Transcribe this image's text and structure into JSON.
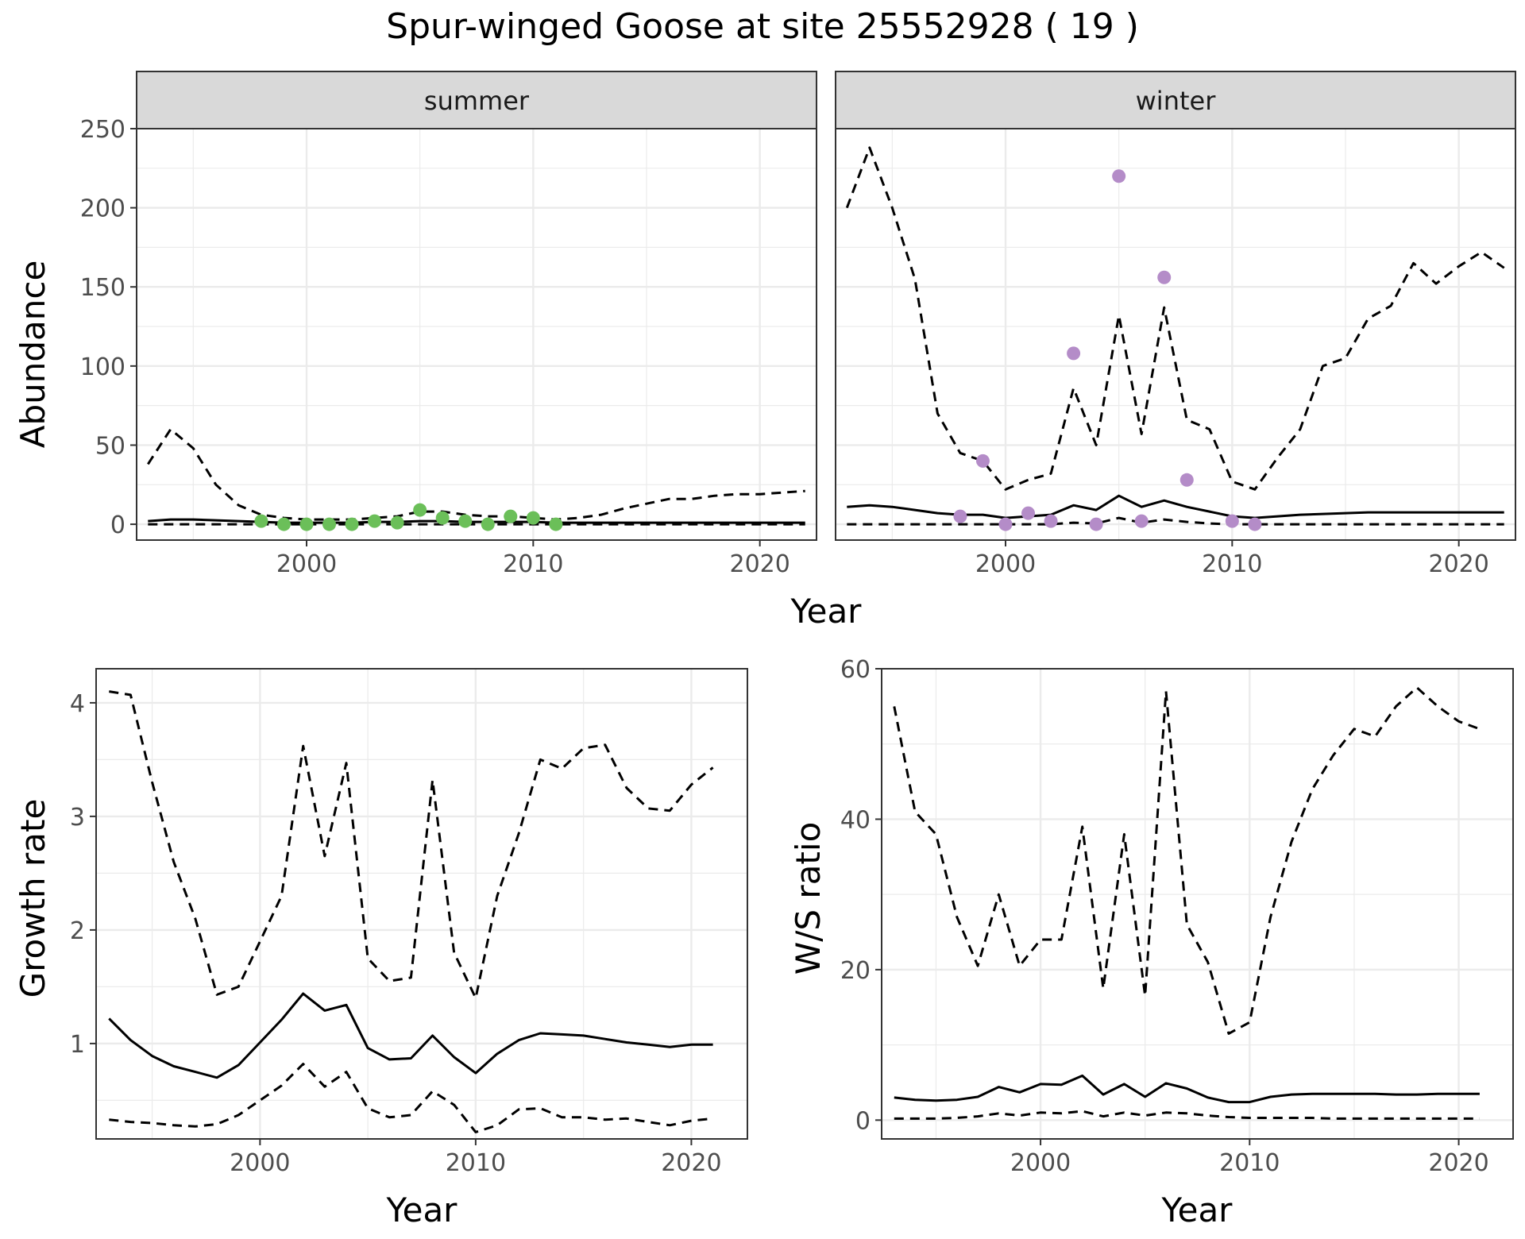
{
  "title": "Spur-winged Goose at site 25552928 ( 19 )",
  "chart_data": [
    {
      "type": "line",
      "panel": "abundance",
      "facets": [
        "summer",
        "winter"
      ],
      "xlabel": "Year",
      "ylabel": "Abundance",
      "xlim": [
        1992.5,
        2022.5
      ],
      "ylim": [
        -10,
        250
      ],
      "x_ticks": [
        2000,
        2010,
        2020
      ],
      "y_ticks": [
        0,
        50,
        100,
        150,
        200,
        250
      ],
      "grid": true,
      "legend": "none",
      "point_colors": {
        "summer": "#6BBF59",
        "winter": "#B48CC8"
      },
      "series": [
        {
          "facet": "summer",
          "kind": "mean",
          "style": "solid",
          "x": [
            1993,
            1994,
            1995,
            1996,
            1997,
            1998,
            1999,
            2000,
            2001,
            2002,
            2003,
            2004,
            2005,
            2006,
            2007,
            2008,
            2009,
            2010,
            2011,
            2012,
            2013,
            2014,
            2015,
            2016,
            2017,
            2018,
            2019,
            2020,
            2021,
            2022
          ],
          "y": [
            2,
            3,
            3,
            2.5,
            2,
            1.5,
            1,
            1,
            1,
            1,
            1.5,
            1.5,
            2,
            2,
            1.5,
            1.5,
            1.5,
            1.5,
            1,
            1,
            1,
            1,
            1,
            1,
            1,
            1,
            1,
            1,
            1,
            1
          ]
        },
        {
          "facet": "summer",
          "kind": "lower",
          "style": "dashed",
          "x": [
            1993,
            1994,
            1995,
            1996,
            1997,
            1998,
            1999,
            2000,
            2001,
            2002,
            2003,
            2004,
            2005,
            2006,
            2007,
            2008,
            2009,
            2010,
            2011,
            2012,
            2013,
            2014,
            2015,
            2016,
            2017,
            2018,
            2019,
            2020,
            2021,
            2022
          ],
          "y": [
            0,
            0,
            0,
            0,
            0,
            0,
            0,
            0,
            0,
            0,
            0,
            0,
            0,
            0,
            0,
            0,
            0,
            0,
            0,
            0,
            0,
            0,
            0,
            0,
            0,
            0,
            0,
            0,
            0,
            0
          ]
        },
        {
          "facet": "summer",
          "kind": "upper",
          "style": "dashed",
          "x": [
            1993,
            1994,
            1995,
            1996,
            1997,
            1998,
            1999,
            2000,
            2001,
            2002,
            2003,
            2004,
            2005,
            2006,
            2007,
            2008,
            2009,
            2010,
            2011,
            2012,
            2013,
            2014,
            2015,
            2016,
            2017,
            2018,
            2019,
            2020,
            2021,
            2022
          ],
          "y": [
            38,
            60,
            48,
            25,
            12,
            6,
            4,
            3,
            3,
            3,
            4,
            5,
            8,
            8,
            6,
            5,
            5,
            4,
            3,
            4,
            6,
            10,
            13,
            16,
            16,
            18,
            19,
            19,
            20,
            21
          ]
        },
        {
          "facet": "winter",
          "kind": "mean",
          "style": "solid",
          "x": [
            1993,
            1994,
            1995,
            1996,
            1997,
            1998,
            1999,
            2000,
            2001,
            2002,
            2003,
            2004,
            2005,
            2006,
            2007,
            2008,
            2009,
            2010,
            2011,
            2012,
            2013,
            2014,
            2015,
            2016,
            2017,
            2018,
            2019,
            2020,
            2021,
            2022
          ],
          "y": [
            11,
            12,
            11,
            9,
            7,
            6,
            6,
            4,
            5,
            6,
            12,
            9,
            18,
            11,
            15,
            11,
            8,
            5,
            4,
            5,
            6,
            6.5,
            7,
            7.5,
            7.5,
            7.5,
            7.5,
            7.5,
            7.5,
            7.5
          ]
        },
        {
          "facet": "winter",
          "kind": "lower",
          "style": "dashed",
          "x": [
            1993,
            1994,
            1995,
            1996,
            1997,
            1998,
            1999,
            2000,
            2001,
            2002,
            2003,
            2004,
            2005,
            2006,
            2007,
            2008,
            2009,
            2010,
            2011,
            2012,
            2013,
            2014,
            2015,
            2016,
            2017,
            2018,
            2019,
            2020,
            2021,
            2022
          ],
          "y": [
            0,
            0,
            0,
            0,
            0,
            0,
            0,
            0,
            0,
            0,
            1,
            0.5,
            4,
            1,
            3,
            1.5,
            0.5,
            0,
            0,
            0,
            0,
            0,
            0,
            0,
            0,
            0,
            0,
            0,
            0,
            0
          ]
        },
        {
          "facet": "winter",
          "kind": "upper",
          "style": "dashed",
          "x": [
            1993,
            1994,
            1995,
            1996,
            1997,
            1998,
            1999,
            2000,
            2001,
            2002,
            2003,
            2004,
            2005,
            2006,
            2007,
            2008,
            2009,
            2010,
            2011,
            2012,
            2013,
            2014,
            2015,
            2016,
            2017,
            2018,
            2019,
            2020,
            2021,
            2022
          ],
          "y": [
            200,
            238,
            200,
            155,
            70,
            45,
            40,
            22,
            28,
            32,
            86,
            50,
            132,
            57,
            137,
            66,
            60,
            27,
            22,
            42,
            60,
            100,
            105,
            130,
            138,
            165,
            152,
            163,
            172,
            162
          ]
        }
      ],
      "points": [
        {
          "facet": "summer",
          "x": [
            1998,
            1999,
            2000,
            2001,
            2002,
            2003,
            2004,
            2005,
            2006,
            2007,
            2008,
            2009,
            2010,
            2011
          ],
          "y": [
            2,
            0,
            0,
            0,
            0,
            2,
            1,
            9,
            4,
            2,
            0,
            5,
            4,
            0
          ]
        },
        {
          "facet": "winter",
          "x": [
            1998,
            1999,
            2000,
            2001,
            2002,
            2003,
            2004,
            2005,
            2006,
            2007,
            2008,
            2010,
            2011
          ],
          "y": [
            5,
            40,
            0,
            7,
            2,
            108,
            0,
            220,
            2,
            156,
            28,
            2,
            0
          ]
        }
      ]
    },
    {
      "type": "line",
      "panel": "growth",
      "xlabel": "Year",
      "ylabel": "Growth rate",
      "xlim": [
        1992.4,
        2022.6
      ],
      "ylim": [
        0.16,
        4.3
      ],
      "x_ticks": [
        2000,
        2010,
        2020
      ],
      "y_ticks": [
        1,
        2,
        3,
        4
      ],
      "grid": true,
      "legend": "none",
      "series": [
        {
          "kind": "mean",
          "style": "solid",
          "x": [
            1993,
            1994,
            1995,
            1996,
            1997,
            1998,
            1999,
            2000,
            2001,
            2002,
            2003,
            2004,
            2005,
            2006,
            2007,
            2008,
            2009,
            2010,
            2011,
            2012,
            2013,
            2014,
            2015,
            2016,
            2017,
            2018,
            2019,
            2020,
            2021
          ],
          "y": [
            1.22,
            1.03,
            0.89,
            0.8,
            0.75,
            0.7,
            0.81,
            1.01,
            1.21,
            1.44,
            1.29,
            1.34,
            0.96,
            0.86,
            0.87,
            1.07,
            0.88,
            0.74,
            0.91,
            1.03,
            1.09,
            1.08,
            1.07,
            1.04,
            1.01,
            0.99,
            0.97,
            0.99,
            0.99
          ]
        },
        {
          "kind": "lower",
          "style": "dashed",
          "x": [
            1993,
            1994,
            1995,
            1996,
            1997,
            1998,
            1999,
            2000,
            2001,
            2002,
            2003,
            2004,
            2005,
            2006,
            2007,
            2008,
            2009,
            2010,
            2011,
            2012,
            2013,
            2014,
            2015,
            2016,
            2017,
            2018,
            2019,
            2020,
            2021
          ],
          "y": [
            0.33,
            0.31,
            0.3,
            0.28,
            0.27,
            0.29,
            0.37,
            0.5,
            0.63,
            0.82,
            0.62,
            0.75,
            0.43,
            0.35,
            0.37,
            0.58,
            0.46,
            0.22,
            0.28,
            0.42,
            0.43,
            0.35,
            0.35,
            0.33,
            0.34,
            0.31,
            0.28,
            0.32,
            0.34
          ]
        },
        {
          "kind": "upper",
          "style": "dashed",
          "x": [
            1993,
            1994,
            1995,
            1996,
            1997,
            1998,
            1999,
            2000,
            2001,
            2002,
            2003,
            2004,
            2005,
            2006,
            2007,
            2008,
            2009,
            2010,
            2011,
            2012,
            2013,
            2014,
            2015,
            2016,
            2017,
            2018,
            2019,
            2020,
            2021
          ],
          "y": [
            4.1,
            4.07,
            3.3,
            2.6,
            2.1,
            1.43,
            1.5,
            1.9,
            2.3,
            3.62,
            2.65,
            3.47,
            1.75,
            1.55,
            1.58,
            3.32,
            1.8,
            1.4,
            2.3,
            2.85,
            3.5,
            3.42,
            3.6,
            3.63,
            3.25,
            3.07,
            3.05,
            3.28,
            3.43
          ]
        }
      ]
    },
    {
      "type": "line",
      "panel": "ratio",
      "xlabel": "Year",
      "ylabel": "W/S ratio",
      "xlim": [
        1992.4,
        2022.6
      ],
      "ylim": [
        -2.5,
        60
      ],
      "x_ticks": [
        2000,
        2010,
        2020
      ],
      "y_ticks": [
        0,
        20,
        40,
        60
      ],
      "grid": true,
      "legend": "none",
      "series": [
        {
          "kind": "mean",
          "style": "solid",
          "x": [
            1993,
            1994,
            1995,
            1996,
            1997,
            1998,
            1999,
            2000,
            2001,
            2002,
            2003,
            2004,
            2005,
            2006,
            2007,
            2008,
            2009,
            2010,
            2011,
            2012,
            2013,
            2014,
            2015,
            2016,
            2017,
            2018,
            2019,
            2020,
            2021
          ],
          "y": [
            3,
            2.7,
            2.6,
            2.7,
            3.1,
            4.4,
            3.7,
            4.8,
            4.7,
            5.9,
            3.4,
            4.8,
            3.1,
            4.9,
            4.2,
            3,
            2.4,
            2.4,
            3.1,
            3.4,
            3.5,
            3.5,
            3.5,
            3.5,
            3.4,
            3.4,
            3.5,
            3.5,
            3.5
          ]
        },
        {
          "kind": "lower",
          "style": "dashed",
          "x": [
            1993,
            1994,
            1995,
            1996,
            1997,
            1998,
            1999,
            2000,
            2001,
            2002,
            2003,
            2004,
            2005,
            2006,
            2007,
            2008,
            2009,
            2010,
            2011,
            2012,
            2013,
            2014,
            2015,
            2016,
            2017,
            2018,
            2019,
            2020,
            2021
          ],
          "y": [
            0.2,
            0.2,
            0.2,
            0.3,
            0.5,
            0.9,
            0.6,
            1,
            0.9,
            1.2,
            0.5,
            1,
            0.6,
            1,
            0.9,
            0.6,
            0.4,
            0.3,
            0.3,
            0.3,
            0.3,
            0.2,
            0.2,
            0.2,
            0.2,
            0.2,
            0.2,
            0.2,
            0.2
          ]
        },
        {
          "kind": "upper",
          "style": "dashed",
          "x": [
            1993,
            1994,
            1995,
            1996,
            1997,
            1998,
            1999,
            2000,
            2001,
            2002,
            2003,
            2004,
            2005,
            2006,
            2007,
            2008,
            2009,
            2010,
            2011,
            2012,
            2013,
            2014,
            2015,
            2016,
            2017,
            2018,
            2019,
            2020,
            2021
          ],
          "y": [
            55,
            41,
            38,
            27,
            20.5,
            30,
            20.5,
            24,
            24,
            39,
            17.5,
            38,
            16.5,
            57,
            26,
            21,
            11.5,
            13,
            27,
            37,
            44,
            48.5,
            52,
            51,
            55,
            57.5,
            55,
            53,
            52
          ]
        }
      ]
    }
  ]
}
